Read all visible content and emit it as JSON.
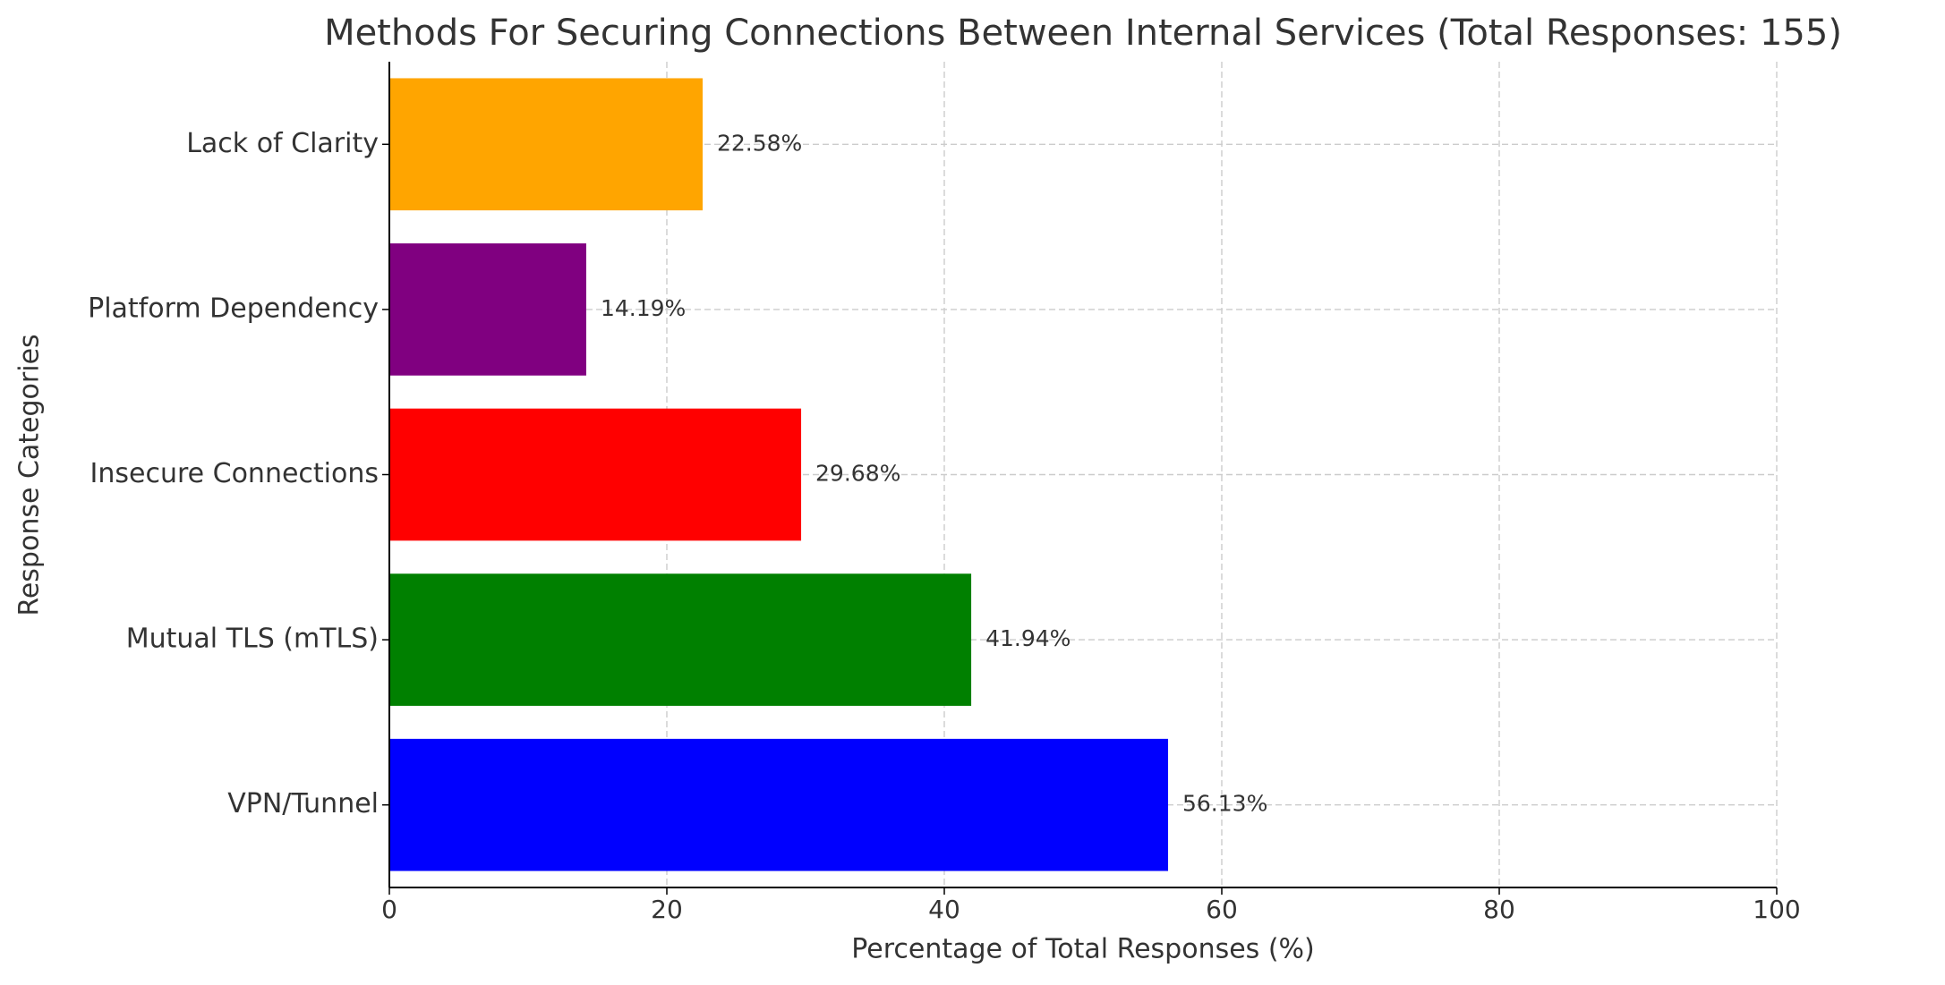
{
  "chart_data": {
    "type": "barh",
    "title": "Methods For Securing Connections Between Internal Services (Total Responses: 155)",
    "x_label": "Percentage of Total Responses (%)",
    "y_label": "Response Categories",
    "categories": [
      "VPN/Tunnel",
      "Mutual TLS (mTLS)",
      "Insecure Connections",
      "Platform Dependency",
      "Lack of Clarity"
    ],
    "values": [
      56.13,
      41.94,
      29.68,
      14.19,
      22.58
    ],
    "value_labels": [
      "56.13%",
      "41.94%",
      "29.68%",
      "14.19%",
      "22.58%"
    ],
    "colors": [
      "#0000ff",
      "#008000",
      "#ff0000",
      "#800080",
      "#ffa500"
    ],
    "xlim": [
      0,
      100
    ],
    "xticks": [
      0,
      20,
      40,
      60,
      80,
      100
    ],
    "grid": true
  }
}
